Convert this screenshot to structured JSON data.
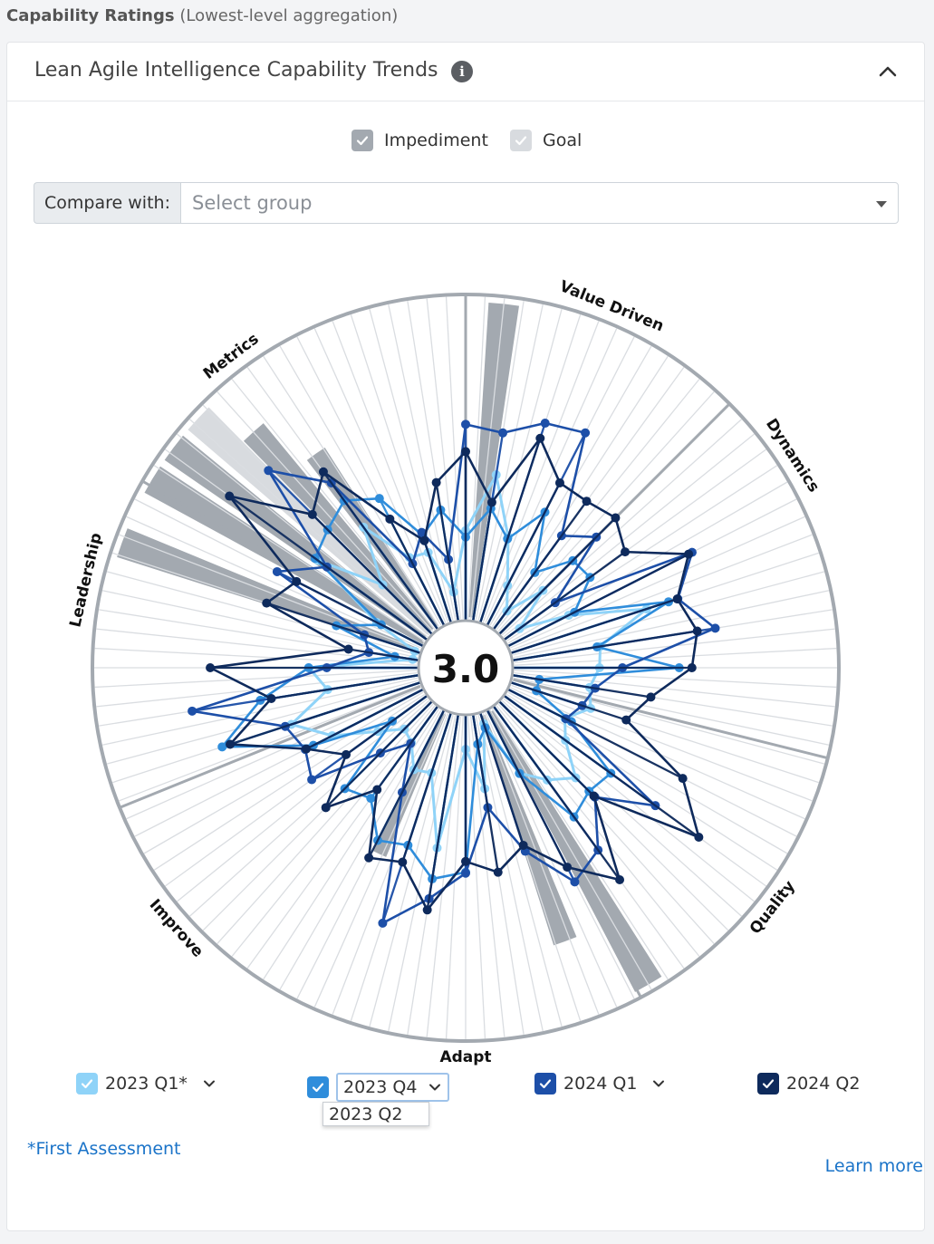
{
  "page": {
    "heading": "Capability Ratings",
    "heading_sub": "(Lowest-level aggregation)"
  },
  "card": {
    "title": "Lean Agile Intelligence Capability Trends"
  },
  "legend": {
    "impediment_label": "Impediment",
    "goal_label": "Goal"
  },
  "compare": {
    "label": "Compare with:",
    "placeholder": "Select group"
  },
  "radar": {
    "center_score": "3.0",
    "categories": [
      "Value Driven",
      "Dynamics",
      "Quality",
      "Adapt",
      "Improve",
      "Leadership",
      "Metrics"
    ]
  },
  "periods": [
    {
      "label": "2023 Q1*",
      "color": "#8fd3f8",
      "has_dropdown": true
    },
    {
      "label": "2023 Q4",
      "color": "#2f8ddb",
      "has_dropdown": true,
      "open": true
    },
    {
      "label": "2024 Q1",
      "color": "#1d4fa8",
      "has_dropdown": true
    },
    {
      "label": "2024 Q2",
      "color": "#0e2a5c",
      "has_dropdown": false
    }
  ],
  "dropdown": {
    "option": "2023 Q2"
  },
  "footer": {
    "first_assessment": "*First Assessment",
    "learn_more": "Learn more"
  },
  "colors": {
    "impediment": "#a3a9b0",
    "goal": "#d8dbdf",
    "ring": "#a3a9b0"
  }
}
